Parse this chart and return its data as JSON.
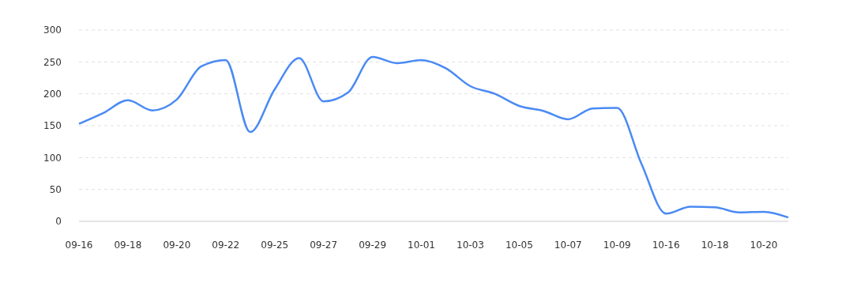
{
  "chart_data": {
    "type": "line",
    "categories": [
      "09-16",
      null,
      "09-18",
      null,
      "09-20",
      null,
      "09-22",
      null,
      "09-25",
      null,
      "09-27",
      null,
      "09-29",
      null,
      "10-01",
      null,
      "10-03",
      null,
      "10-05",
      null,
      "10-07",
      null,
      "10-09",
      null,
      "10-16",
      null,
      "10-18",
      null,
      "10-20",
      null
    ],
    "series": [
      {
        "color": "#4a8af4",
        "values": [
          153,
          170,
          190,
          174,
          191,
          243,
          253,
          140,
          207,
          256,
          188,
          202,
          258,
          248,
          253,
          240,
          212,
          200,
          181,
          173,
          160,
          177,
          178,
          90,
          12,
          23,
          22,
          14,
          15,
          6
        ]
      }
    ],
    "ylim": [
      0,
      300
    ],
    "yticks": [
      0,
      50,
      100,
      150,
      200,
      250,
      300
    ],
    "grid": "y",
    "marker": "none",
    "line_style": "solid"
  }
}
